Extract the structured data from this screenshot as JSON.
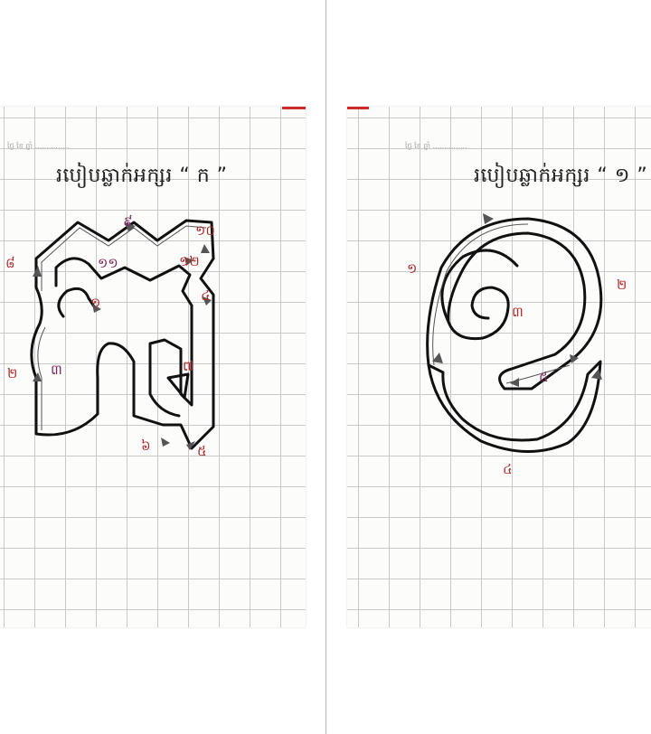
{
  "pages": [
    {
      "title": "របៀបឆ្លាក់អក្សរ “ ក ”",
      "header_note": "ថ្ងៃ ខែ ឆ្នាំ ...............",
      "letter": "ក",
      "stroke_numbers": [
        "១",
        "២",
        "៣",
        "៤",
        "៥",
        "៦",
        "៧",
        "៨",
        "៩",
        "១០",
        "១១",
        "១២"
      ]
    },
    {
      "title": "របៀបឆ្លាក់អក្សរ “ ១ ”",
      "header_note": "ថ្ងៃ ខែ ឆ្នាំ ...............",
      "letter": "១",
      "stroke_numbers": [
        "១",
        "២",
        "៣",
        "៤",
        "៥"
      ]
    }
  ],
  "colors": {
    "grid": "#c9c9c9",
    "outline": "#111111",
    "stroke_number": "#b02b2b",
    "page_tab": "#cc2b2b"
  }
}
